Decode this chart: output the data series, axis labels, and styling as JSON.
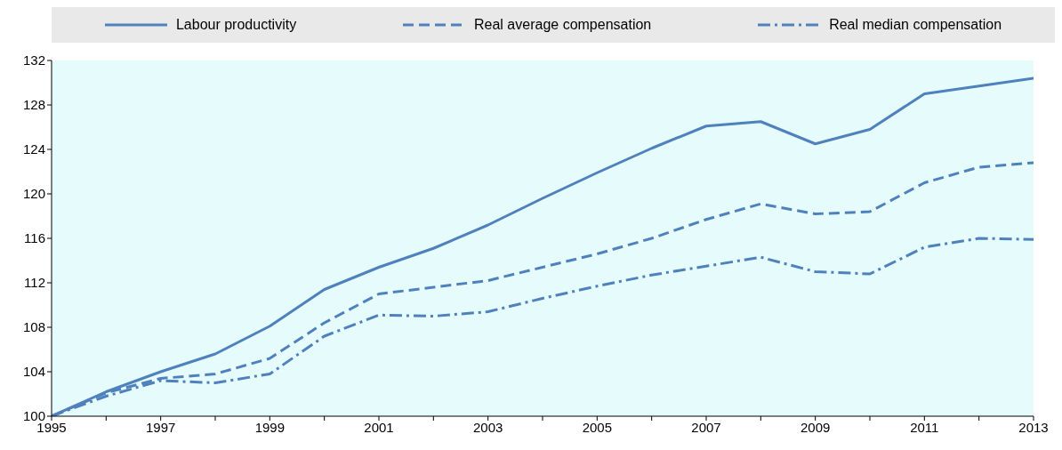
{
  "chart_data": {
    "type": "line",
    "x": [
      1995,
      1996,
      1997,
      1998,
      1999,
      2000,
      2001,
      2002,
      2003,
      2004,
      2005,
      2006,
      2007,
      2008,
      2009,
      2010,
      2011,
      2012,
      2013
    ],
    "xlim": [
      1995,
      2013
    ],
    "xticks": [
      1995,
      {
        "value": 1996,
        "label": null
      },
      1997,
      {
        "value": 1998,
        "label": null
      },
      1999,
      {
        "value": 2000,
        "label": null
      },
      2001,
      {
        "value": 2002,
        "label": null
      },
      2003,
      {
        "value": 2004,
        "label": null
      },
      2005,
      {
        "value": 2006,
        "label": null
      },
      2007,
      {
        "value": 2008,
        "label": null
      },
      2009,
      {
        "value": 2010,
        "label": null
      },
      2011,
      {
        "value": 2012,
        "label": null
      },
      2013
    ],
    "ylim": [
      100,
      132
    ],
    "yticks": [
      100,
      104,
      108,
      112,
      116,
      120,
      124,
      128,
      132
    ],
    "grid": false,
    "legend": "top",
    "marker": "none",
    "series": [
      {
        "name": "Labour productivity",
        "color": "#4f81bd",
        "line_style": "solid",
        "values": [
          100,
          102.2,
          104,
          105.6,
          108.1,
          111.4,
          113.4,
          115.1,
          117.2,
          119.6,
          121.9,
          124.1,
          126.1,
          126.5,
          124.5,
          125.8,
          129,
          129.7,
          130.4
        ]
      },
      {
        "name": "Real average compensation",
        "color": "#4f81bd",
        "line_style": "dashed",
        "values": [
          100,
          102.1,
          103.4,
          103.8,
          105.2,
          108.4,
          111,
          111.6,
          112.2,
          113.4,
          114.6,
          116,
          117.7,
          119.1,
          118.2,
          118.4,
          121,
          122.4,
          122.8
        ]
      },
      {
        "name": "Real median compensation",
        "color": "#4f81bd",
        "line_style": "dashdot",
        "values": [
          100,
          101.8,
          103.2,
          103,
          103.8,
          107.2,
          109.1,
          109,
          109.4,
          110.6,
          111.7,
          112.7,
          113.5,
          114.3,
          113,
          112.8,
          115.2,
          116,
          115.9
        ]
      }
    ]
  }
}
